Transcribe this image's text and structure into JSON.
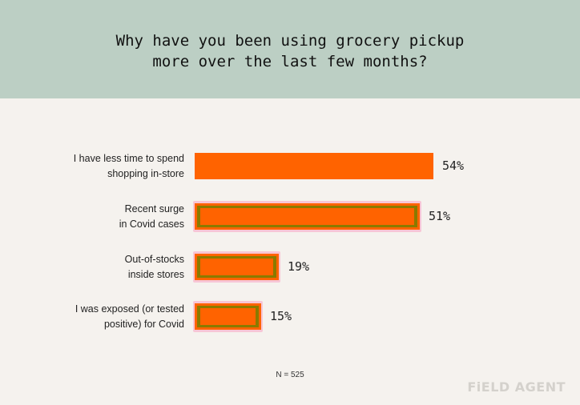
{
  "header": {
    "title": "Why have you been using grocery pickup\nmore over the last few months?"
  },
  "chart_data": {
    "type": "bar",
    "orientation": "horizontal",
    "categories": [
      "I have less time to spend\nshopping in-store",
      "Recent surge\nin Covid cases",
      "Out-of-stocks\ninside stores",
      "I was exposed (or tested\npositive) for Covid"
    ],
    "values": [
      54,
      51,
      19,
      15
    ],
    "value_labels": [
      "54%",
      "51%",
      "19%",
      "15%"
    ],
    "unit": "%",
    "xlim": [
      0,
      54
    ],
    "bar_color": "#ff6300",
    "highlight_outline_color": "#f7c6d6",
    "highlight_inner_color": "#8a7a00",
    "highlighted": [
      false,
      true,
      true,
      true
    ],
    "legend": "none",
    "grid": false
  },
  "note": "N = 525",
  "logo": "FiELD AGENT"
}
